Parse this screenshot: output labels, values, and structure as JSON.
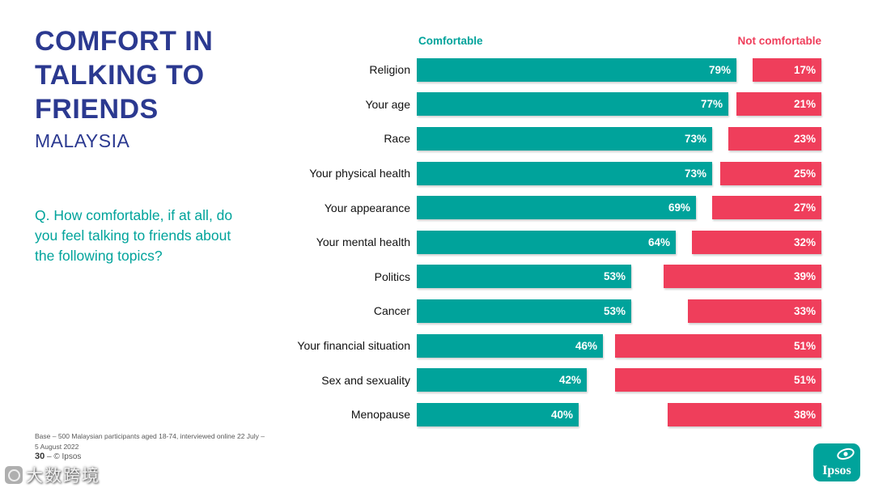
{
  "slide": {
    "title_lines": [
      "COMFORT IN",
      "TALKING TO",
      "FRIENDS"
    ],
    "subtitle": "MALAYSIA",
    "question": "Q. How comfortable, if at all, do you feel talking to friends about the following topics?",
    "base_note_lines": [
      "Base – 500 Malaysian participants aged 18-74, interviewed online 22 July –",
      "5 August 2022"
    ],
    "page_number": "30",
    "page_separator": "–",
    "copyright": "© Ipsos",
    "logo_text": "Ipsos",
    "watermark": "大数跨境"
  },
  "colors": {
    "comfortable": "#00A39B",
    "not_comfortable": "#EF3E5B",
    "title_blue": "#2B3990",
    "question_teal": "#00A39B",
    "logo_teal": "#00A39B"
  },
  "chart_data": {
    "type": "bar",
    "orientation": "horizontal",
    "title": "Comfort in talking to friends - Malaysia",
    "categories": [
      "Religion",
      "Your age",
      "Race",
      "Your physical health",
      "Your appearance",
      "Your mental health",
      "Politics",
      "Cancer",
      "Your financial situation",
      "Sex and sexuality",
      "Menopause"
    ],
    "series": [
      {
        "name": "Comfortable",
        "color": "#00A39B",
        "values": [
          79,
          77,
          73,
          73,
          69,
          64,
          53,
          53,
          46,
          42,
          40
        ]
      },
      {
        "name": "Not comfortable",
        "color": "#EF3E5B",
        "values": [
          17,
          21,
          23,
          25,
          27,
          32,
          39,
          33,
          51,
          51,
          38
        ]
      }
    ],
    "value_suffix": "%",
    "xlim": [
      0,
      100
    ],
    "legend_position": "top",
    "grid": false
  }
}
